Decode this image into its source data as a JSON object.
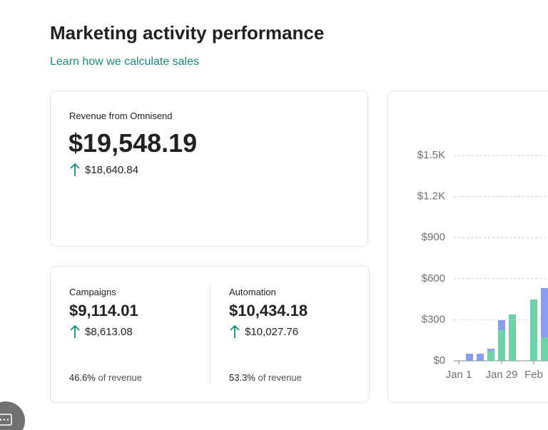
{
  "header": {
    "title": "Marketing activity performance",
    "link": "Learn how we calculate sales"
  },
  "revenue": {
    "label": "Revenue from Omnisend",
    "value": "$19,548.19",
    "change": "$18,640.84"
  },
  "campaigns": {
    "label": "Campaigns",
    "value": "$9,114.01",
    "change": "$8,613.08",
    "share": "46.6%",
    "share_suffix": "of revenue"
  },
  "automation": {
    "label": "Automation",
    "value": "$10,434.18",
    "change": "$10,027.76",
    "share": "53.3%",
    "share_suffix": "of revenue"
  },
  "chart_data": {
    "type": "bar",
    "stacked": true,
    "categories": [
      "Jan 1",
      null,
      null,
      null,
      "Jan 29",
      null,
      null,
      "Feb",
      null
    ],
    "series": [
      {
        "color": "#6fd1a8",
        "values": [
          0,
          0,
          0,
          73,
          224,
          339,
          0,
          448,
          172
        ]
      },
      {
        "color": "#8a9cf0",
        "values": [
          0,
          52,
          52,
          16,
          73,
          0,
          0,
          0,
          359
        ]
      }
    ],
    "ylim": [
      0,
      1500
    ],
    "yticks": [
      {
        "value": 0,
        "label": "$0"
      },
      {
        "value": 300,
        "label": "$300"
      },
      {
        "value": 600,
        "label": "$600"
      },
      {
        "value": 900,
        "label": "$900"
      },
      {
        "value": 1200,
        "label": "$1.2K"
      },
      {
        "value": 1500,
        "label": "$1.5K"
      }
    ],
    "grid": true
  }
}
